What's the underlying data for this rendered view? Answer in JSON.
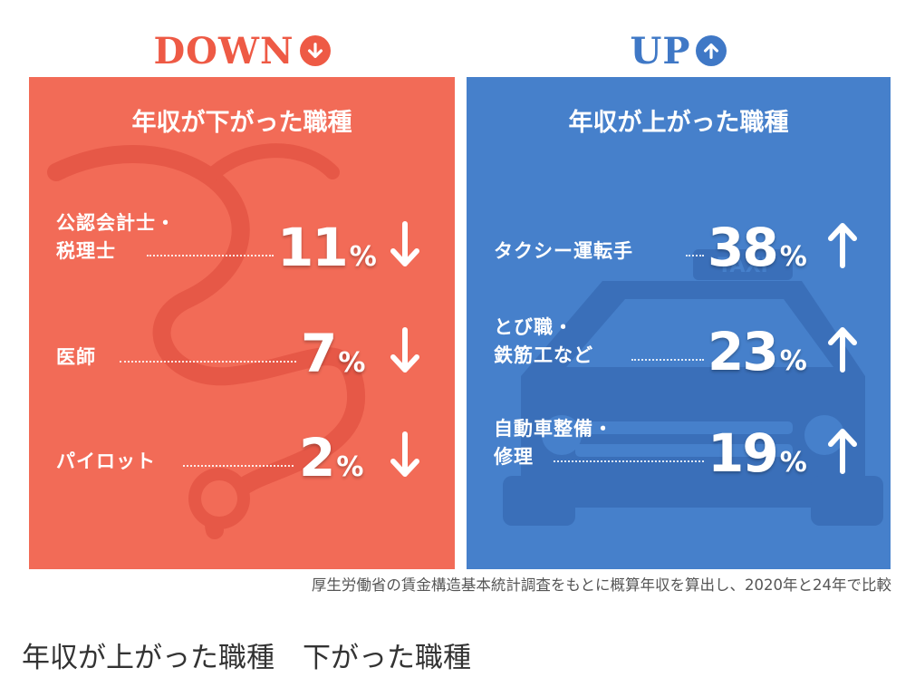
{
  "colors": {
    "down_panel": "#f26b57",
    "down_heading": "#ee5a45",
    "up_panel": "#4680cb",
    "up_heading": "#3f78c6"
  },
  "chart_data": [
    {
      "type": "table",
      "heading": "DOWN",
      "title": "年収が下がった職種",
      "unit": "%",
      "direction": "down",
      "items": [
        {
          "label_lines": [
            "公認会計士・",
            "税理士"
          ],
          "value": "11",
          "unit": "%"
        },
        {
          "label_lines": [
            "医師"
          ],
          "value": "7",
          "unit": "%"
        },
        {
          "label_lines": [
            "パイロット"
          ],
          "value": "2",
          "unit": "%"
        }
      ]
    },
    {
      "type": "table",
      "heading": "UP",
      "title": "年収が上がった職種",
      "unit": "%",
      "direction": "up",
      "items": [
        {
          "label_lines": [
            "タクシー運転手"
          ],
          "value": "38",
          "unit": "%"
        },
        {
          "label_lines": [
            "とび職・",
            "鉄筋工など"
          ],
          "value": "23",
          "unit": "%"
        },
        {
          "label_lines": [
            "自動車整備・",
            "修理"
          ],
          "value": "19",
          "unit": "%"
        }
      ]
    }
  ],
  "taxi_sign": "TAXI",
  "source_note": "厚生労働省の賃金構造基本統計調査をもとに概算年収を算出し、2020年と24年で比較",
  "caption": "年収が上がった職種　下がった職種"
}
